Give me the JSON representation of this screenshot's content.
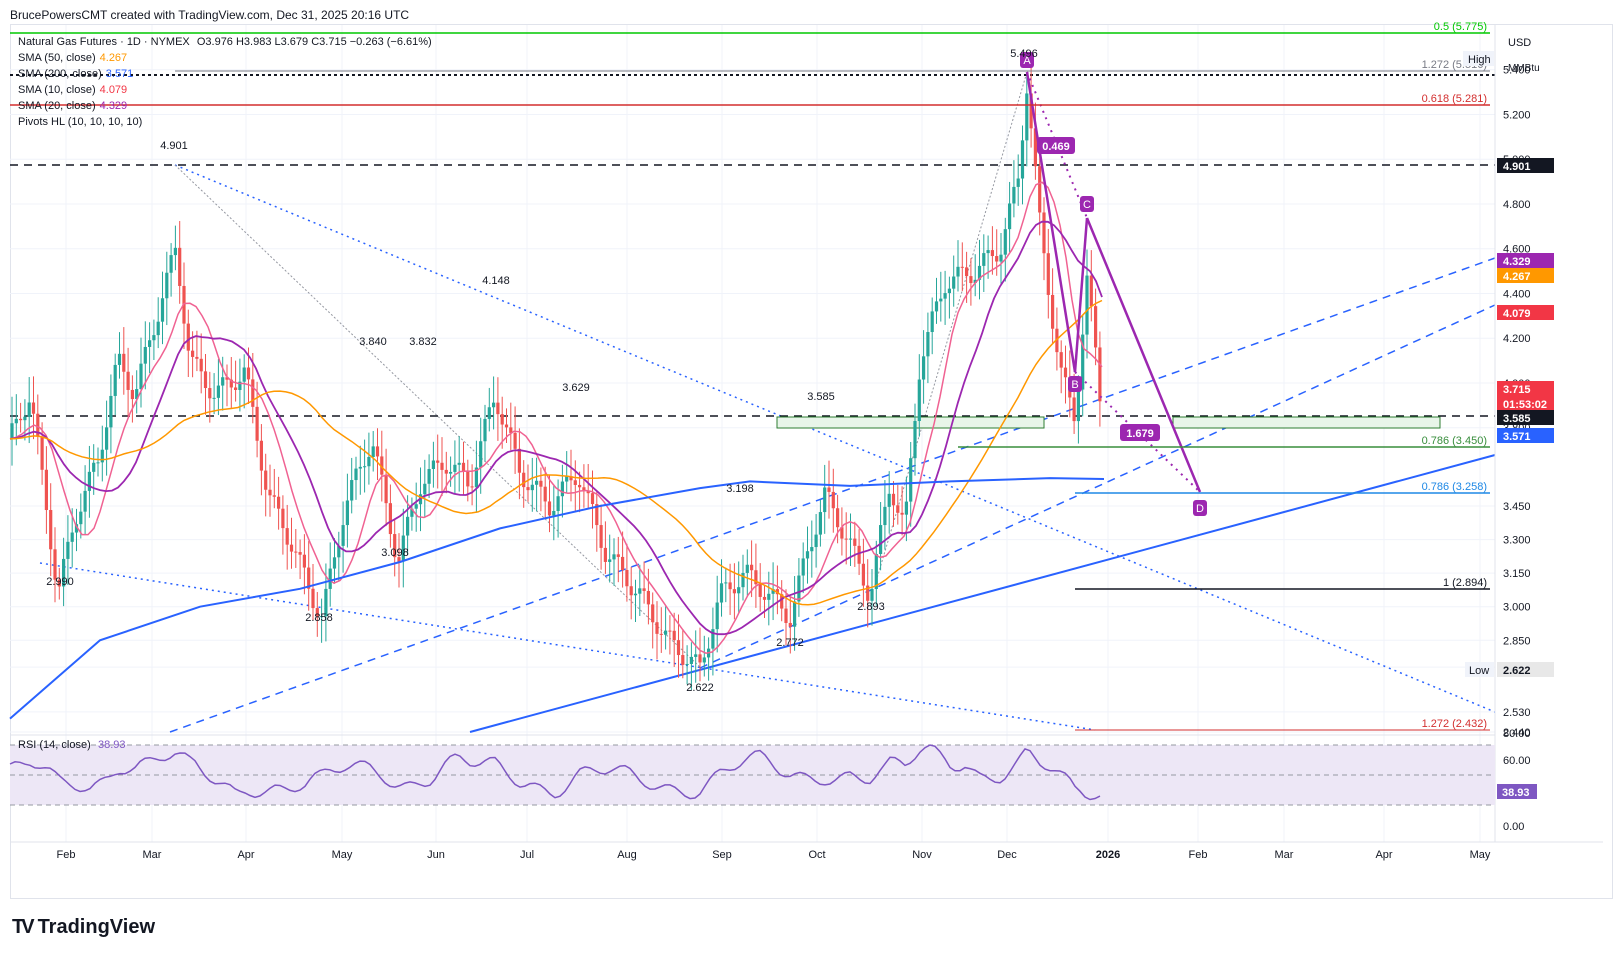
{
  "header": {
    "author_line": "BrucePowersCMT created with TradingView.com, Dec 31, 2025 20:16 UTC"
  },
  "legend": {
    "symbol": "Natural Gas Futures · 1D · NYMEX",
    "ohlc": "O3.976  H3.983  L3.679  C3.715  −0.263 (−6.61%)",
    "sma50": {
      "label": "SMA (50, close)",
      "value": "4.267",
      "color": "#ff9800"
    },
    "sma200": {
      "label": "SMA (200, close)",
      "value": "3.571",
      "color": "#2962ff"
    },
    "sma10": {
      "label": "SMA (10, close)",
      "value": "4.079",
      "color": "#f23645"
    },
    "sma20": {
      "label": "SMA (20, close)",
      "value": "4.329",
      "color": "#9c27b0"
    },
    "pivots": {
      "label": "Pivots HL (10, 10, 10, 10)"
    }
  },
  "price_axis": {
    "currency": "USD",
    "unit": "MMBtu",
    "ticks": [
      "5.400",
      "5.200",
      "5.000",
      "4.800",
      "4.600",
      "4.400",
      "4.200",
      "4.000",
      "3.800",
      "3.450",
      "3.300",
      "3.150",
      "3.000",
      "2.850",
      "2.730",
      "2.530",
      "2.440"
    ],
    "high_label": "High",
    "low_label": "Low",
    "badges": [
      {
        "value": "4.901",
        "bg": "#131722"
      },
      {
        "value": "4.329",
        "bg": "#9c27b0"
      },
      {
        "value": "4.267",
        "bg": "#ff9800"
      },
      {
        "value": "4.079",
        "bg": "#f23645"
      },
      {
        "value": "3.715",
        "bg": "#f23645"
      },
      {
        "value": "01:53:02",
        "bg": "#f23645"
      },
      {
        "value": "3.585",
        "bg": "#131722"
      },
      {
        "value": "3.571",
        "bg": "#2962ff"
      },
      {
        "value": "2.622",
        "bg": "#e8e8e8"
      }
    ]
  },
  "time_axis": {
    "labels": [
      "Feb",
      "Mar",
      "Apr",
      "May",
      "Jun",
      "Jul",
      "Aug",
      "Sep",
      "Oct",
      "Nov",
      "Dec",
      "2026",
      "Feb",
      "Mar",
      "Apr",
      "May"
    ]
  },
  "pivot_labels": [
    "4.901",
    "2.990",
    "3.840",
    "3.832",
    "2.858",
    "3.098",
    "4.148",
    "3.629",
    "3.585",
    "3.198",
    "2.622",
    "2.772",
    "2.893",
    "5.496"
  ],
  "fib_levels": [
    {
      "label": "0.5 (5.775)",
      "color": "#00c800"
    },
    {
      "label": "1.272 (5.516)",
      "color": "#787b86"
    },
    {
      "label": "0.618 (5.281)",
      "color": "#d32f2f"
    },
    {
      "label": "0.786 (3.450)",
      "color": "#388e3c"
    },
    {
      "label": "0.786 (3.258)",
      "color": "#1e88e5"
    },
    {
      "label": "1 (2.894)",
      "color": "#131722"
    },
    {
      "label": "1.272 (2.432)",
      "color": "#d32f2f"
    }
  ],
  "pattern": {
    "points": [
      "A",
      "B",
      "C",
      "D"
    ],
    "ratio_ab": "0.469",
    "ratio_cd": "1.679",
    "color": "#9c27b0"
  },
  "rsi": {
    "label": "RSI (14, close)",
    "value": "38.93",
    "ticks": [
      "80.00",
      "60.00",
      "0.00"
    ],
    "color": "#7e57c2"
  },
  "branding": {
    "logo_text": "TradingView"
  },
  "chart_data": {
    "type": "candlestick",
    "title": "Natural Gas Futures · 1D · NYMEX",
    "ylabel": "USD / MMBtu",
    "ylim": [
      2.44,
      5.6
    ],
    "x": [
      "Feb",
      "Mar",
      "Apr",
      "May",
      "Jun",
      "Jul",
      "Aug",
      "Sep",
      "Oct",
      "Nov",
      "Dec",
      "2026"
    ],
    "series": [
      {
        "name": "SMA (50, close)",
        "last": 4.267
      },
      {
        "name": "SMA (200, close)",
        "last": 3.571
      },
      {
        "name": "SMA (10, close)",
        "last": 4.079
      },
      {
        "name": "SMA (20, close)",
        "last": 4.329
      }
    ],
    "last_close": 3.715,
    "pivot_highs": [
      4.901,
      3.84,
      3.832,
      4.148,
      3.629,
      3.585,
      3.198,
      5.496
    ],
    "pivot_lows": [
      2.99,
      2.858,
      3.098,
      2.622,
      2.772,
      2.893
    ]
  }
}
